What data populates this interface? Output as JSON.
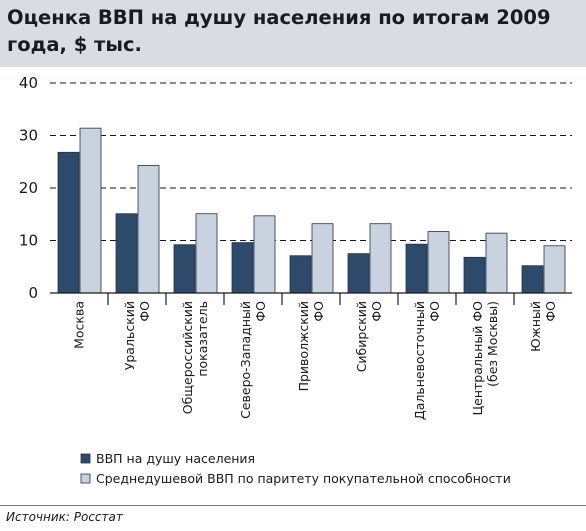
{
  "title": "Оценка ВВП на душу населения по итогам 2009 года, $ тыс.",
  "source": "Источник: Росстат",
  "colors": {
    "series1": "#2e4a6b",
    "series2": "#c9d3df",
    "title_band": "#d9dde3"
  },
  "chart_data": {
    "type": "bar",
    "title": "Оценка ВВП на душу населения по итогам 2009 года, $ тыс.",
    "categories": [
      [
        "Москва"
      ],
      [
        "Уральский",
        "ФО"
      ],
      [
        "Общероссийский",
        "показатель"
      ],
      [
        "Северо-Западный",
        "ФО"
      ],
      [
        "Приволжский",
        "ФО"
      ],
      [
        "Сибирский",
        "ФО"
      ],
      [
        "Дальневосточный",
        "ФО"
      ],
      [
        "Центральный ФО",
        "(без Москвы)"
      ],
      [
        "Южный",
        "ФО"
      ]
    ],
    "series": [
      {
        "name": "ВВП на душу населения",
        "values": [
          26.8,
          15.1,
          9.2,
          9.6,
          7.1,
          7.5,
          9.3,
          6.8,
          5.2
        ]
      },
      {
        "name": "Среднедушевой ВВП по паритету покупательной способности",
        "values": [
          31.4,
          24.3,
          15.1,
          14.7,
          13.2,
          13.2,
          11.7,
          11.4,
          9.0
        ]
      }
    ],
    "ylim": [
      0,
      40
    ],
    "yticks": [
      "0",
      "10",
      "20",
      "30",
      "40"
    ],
    "grid": "dashed horizontal",
    "legend": "bottom-left"
  }
}
